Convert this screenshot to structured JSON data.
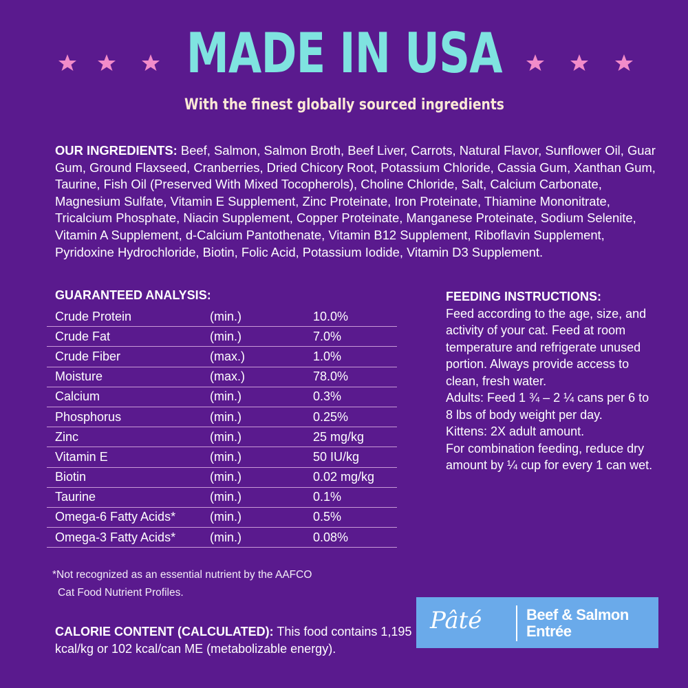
{
  "header": {
    "title": "MADE IN USA",
    "subtitle": "With the finest globally sourced ingredients"
  },
  "ingredients": {
    "label": "OUR INGREDIENTS:",
    "text": "Beef, Salmon, Salmon Broth, Beef Liver, Carrots, Natural Flavor, Sunflower Oil, Guar Gum, Ground Flaxseed, Cranberries, Dried Chicory Root, Potassium Chloride, Cassia Gum, Xanthan Gum, Taurine, Fish Oil (Preserved With Mixed Tocopherols), Choline Chloride, Salt, Calcium Carbonate, Magnesium Sulfate, Vitamin E Supplement, Zinc Proteinate, Iron Proteinate, Thiamine Mononitrate, Tricalcium Phosphate, Niacin Supplement, Copper Proteinate, Manganese Proteinate, Sodium Selenite, Vitamin A Supplement, d-Calcium Pantothenate, Vitamin B12 Supplement, Riboflavin Supplement, Pyridoxine Hydrochloride, Biotin, Folic Acid, Potassium Iodide, Vitamin D3 Supplement."
  },
  "analysis": {
    "title": "GUARANTEED ANALYSIS:",
    "rows": [
      [
        "Crude Protein",
        "(min.)",
        "10.0%"
      ],
      [
        "Crude Fat",
        "(min.)",
        "7.0%"
      ],
      [
        "Crude Fiber",
        "(max.)",
        "1.0%"
      ],
      [
        "Moisture",
        "(max.)",
        "78.0%"
      ],
      [
        "Calcium",
        "(min.)",
        "0.3%"
      ],
      [
        "Phosphorus",
        "(min.)",
        "0.25%"
      ],
      [
        "Zinc",
        "(min.)",
        "25 mg/kg"
      ],
      [
        "Vitamin E",
        "(min.)",
        "50 IU/kg"
      ],
      [
        "Biotin",
        "(min.)",
        "0.02 mg/kg"
      ],
      [
        "Taurine",
        "(min.)",
        "0.1%"
      ],
      [
        "Omega-6 Fatty Acids*",
        "(min.)",
        "0.5%"
      ],
      [
        "Omega-3 Fatty Acids*",
        "(min.)",
        "0.08%"
      ]
    ]
  },
  "feeding": {
    "title": "FEEDING INSTRUCTIONS:",
    "paragraphs": [
      "Feed according to the age, size, and activity of your cat. Feed at room temperature and refrigerate unused portion. Always provide access to clean, fresh water.",
      "Adults: Feed 1 ¾ – 2 ¼ cans per 6 to 8 lbs of body weight per day.",
      "Kittens: 2X adult amount.",
      "For combination feeding, reduce dry amount by ¼ cup for every 1 can wet."
    ]
  },
  "footnote": {
    "lines": [
      "*Not recognized as an essential nutrient by the AAFCO",
      "Cat Food Nutrient Profiles."
    ]
  },
  "calorie": {
    "label": "CALORIE CONTENT (CALCULATED):",
    "text": "This food contains 1,195 kcal/kg or 102 kcal/can ME (metabolizable energy)."
  },
  "badge": {
    "style": "Pâté",
    "name_lines": [
      "Beef & Salmon",
      "Entrée"
    ]
  }
}
